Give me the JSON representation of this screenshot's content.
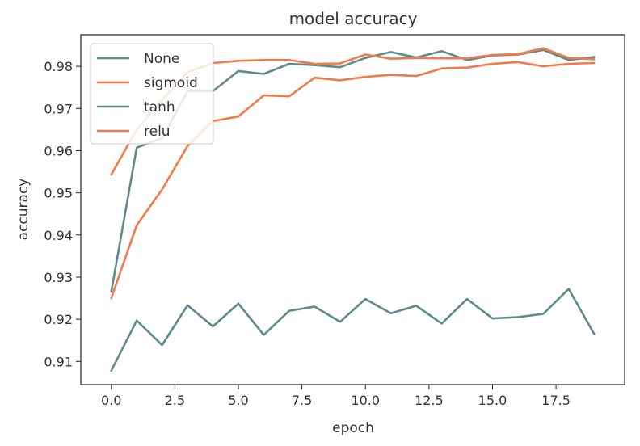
{
  "chart_data": {
    "type": "line",
    "title": "model accuracy",
    "xlabel": "epoch",
    "ylabel": "accuracy",
    "xlim": [
      -1.2,
      20.2
    ],
    "ylim": [
      0.9045,
      0.9875
    ],
    "xticks": [
      0.0,
      2.5,
      5.0,
      7.5,
      10.0,
      12.5,
      15.0,
      17.5
    ],
    "xtick_labels": [
      "0.0",
      "2.5",
      "5.0",
      "7.5",
      "10.0",
      "12.5",
      "15.0",
      "17.5"
    ],
    "yticks": [
      0.91,
      0.92,
      0.93,
      0.94,
      0.95,
      0.96,
      0.97,
      0.98
    ],
    "ytick_labels": [
      "0.91",
      "0.92",
      "0.93",
      "0.94",
      "0.95",
      "0.96",
      "0.97",
      "0.98"
    ],
    "grid": false,
    "legend_position": "top-left",
    "x": [
      0,
      1,
      2,
      3,
      4,
      5,
      6,
      7,
      8,
      9,
      10,
      11,
      12,
      13,
      14,
      15,
      16,
      17,
      18,
      19
    ],
    "series": [
      {
        "name": "None",
        "color": "#5f8a8b",
        "values": [
          0.9078,
          0.9197,
          0.9139,
          0.9233,
          0.9183,
          0.9237,
          0.9163,
          0.922,
          0.923,
          0.9194,
          0.9248,
          0.9214,
          0.9232,
          0.919,
          0.9248,
          0.9202,
          0.9205,
          0.9213,
          0.9272,
          0.9165
        ]
      },
      {
        "name": "sigmoid",
        "color": "#f07b4a",
        "values": [
          0.925,
          0.9423,
          0.9508,
          0.9611,
          0.967,
          0.9681,
          0.9731,
          0.9729,
          0.9773,
          0.9767,
          0.9775,
          0.978,
          0.9777,
          0.9795,
          0.9797,
          0.9806,
          0.981,
          0.98,
          0.9806,
          0.9808
        ]
      },
      {
        "name": "tanh",
        "color": "#5f8a8b",
        "values": [
          0.9265,
          0.9607,
          0.963,
          0.9741,
          0.9741,
          0.9789,
          0.9782,
          0.9806,
          0.9803,
          0.9798,
          0.982,
          0.9834,
          0.9821,
          0.9836,
          0.9815,
          0.9826,
          0.9828,
          0.9839,
          0.9815,
          0.9822
        ]
      },
      {
        "name": "relu",
        "color": "#f07b4a",
        "values": [
          0.9543,
          0.965,
          0.972,
          0.9786,
          0.9808,
          0.9813,
          0.9815,
          0.9815,
          0.9806,
          0.9807,
          0.9828,
          0.9818,
          0.982,
          0.9819,
          0.9819,
          0.9827,
          0.9829,
          0.9843,
          0.982,
          0.9817
        ]
      }
    ]
  }
}
